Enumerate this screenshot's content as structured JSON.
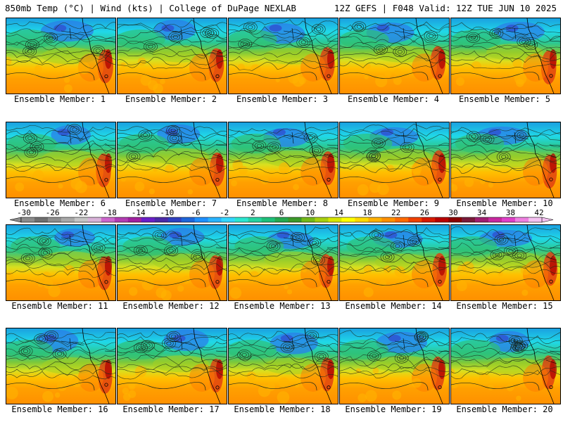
{
  "header": {
    "left_title": "850mb Temp (°C) | Wind (kts) | College of DuPage NEXLAB",
    "right_title": "12Z GEFS | F048 Valid: 12Z TUE JUN 10 2025"
  },
  "members": [
    {
      "label": "Ensemble Member: 1",
      "seed": 1
    },
    {
      "label": "Ensemble Member: 2",
      "seed": 2
    },
    {
      "label": "Ensemble Member: 3",
      "seed": 3
    },
    {
      "label": "Ensemble Member: 4",
      "seed": 4
    },
    {
      "label": "Ensemble Member: 5",
      "seed": 5
    },
    {
      "label": "Ensemble Member: 6",
      "seed": 6
    },
    {
      "label": "Ensemble Member: 7",
      "seed": 7
    },
    {
      "label": "Ensemble Member: 8",
      "seed": 8
    },
    {
      "label": "Ensemble Member: 9",
      "seed": 9
    },
    {
      "label": "Ensemble Member: 10",
      "seed": 10
    },
    {
      "label": "Ensemble Member: 11",
      "seed": 11
    },
    {
      "label": "Ensemble Member: 12",
      "seed": 12
    },
    {
      "label": "Ensemble Member: 13",
      "seed": 13
    },
    {
      "label": "Ensemble Member: 14",
      "seed": 14
    },
    {
      "label": "Ensemble Member: 15",
      "seed": 15
    },
    {
      "label": "Ensemble Member: 16",
      "seed": 16
    },
    {
      "label": "Ensemble Member: 17",
      "seed": 17
    },
    {
      "label": "Ensemble Member: 18",
      "seed": 18
    },
    {
      "label": "Ensemble Member: 19",
      "seed": 19
    },
    {
      "label": "Ensemble Member: 20",
      "seed": 20
    }
  ],
  "colorbar": {
    "tick_labels": [
      "-30",
      "-26",
      "-22",
      "-18",
      "-14",
      "-10",
      "-6",
      "-2",
      "2",
      "6",
      "10",
      "14",
      "18",
      "22",
      "26",
      "30",
      "34",
      "38",
      "42"
    ],
    "colors": [
      "#8c8c8c",
      "#6f6f6f",
      "#8e8e8e",
      "#a9a9a9",
      "#c4c4c4",
      "#d8b2d8",
      "#cc66cc",
      "#b23cb2",
      "#a020a0",
      "#6a1ec8",
      "#4b2aa8",
      "#3040c0",
      "#1f66d9",
      "#1e90ff",
      "#29b3ff",
      "#33d6ff",
      "#2ce6d0",
      "#26d2a0",
      "#1fbf7a",
      "#28a850",
      "#3c9a2a",
      "#74b81a",
      "#a8cf10",
      "#d8e600",
      "#ffff00",
      "#ffd800",
      "#ffb000",
      "#ff9000",
      "#ff6a00",
      "#f04000",
      "#d81a00",
      "#b80000",
      "#8c0000",
      "#7a1a3a",
      "#a01e70",
      "#c828a0",
      "#e040c8",
      "#ee80e0",
      "#f4c0f0"
    ]
  }
}
